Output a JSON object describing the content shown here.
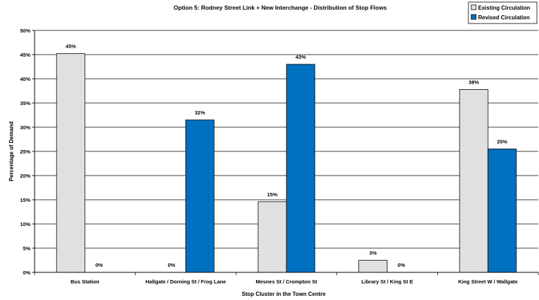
{
  "chart_data": {
    "type": "bar",
    "title": "Option 5: Rodney Street Link +  New Interchange  - Distribution of Stop Flows",
    "xlabel": "Stop Cluster in the Town Centre",
    "ylabel": "Percentage of Demand",
    "ylim": [
      0,
      50
    ],
    "y_ticks": [
      "0%",
      "5%",
      "10%",
      "15%",
      "20%",
      "25%",
      "30%",
      "35%",
      "40%",
      "45%",
      "50%"
    ],
    "grid": true,
    "legend_position": "top-right",
    "categories": [
      "Bus Station",
      "Hallgate / Dorning St / Frog Lane",
      "Mesnes St / Crompton St",
      "Library St / King St E",
      "King Street W / Wallgate"
    ],
    "series": [
      {
        "name": "Existing Circulation",
        "color": "#e0e0e0",
        "values": [
          45.2,
          0,
          14.6,
          2.5,
          37.8
        ],
        "data_labels": [
          "45%",
          "0%",
          "15%",
          "3%",
          "38%"
        ]
      },
      {
        "name": "Revised Circulation",
        "color": "#0070c0",
        "values": [
          0,
          31.5,
          43.0,
          0,
          25.5
        ],
        "data_labels": [
          "0%",
          "32%",
          "43%",
          "0%",
          "25%"
        ]
      }
    ]
  }
}
